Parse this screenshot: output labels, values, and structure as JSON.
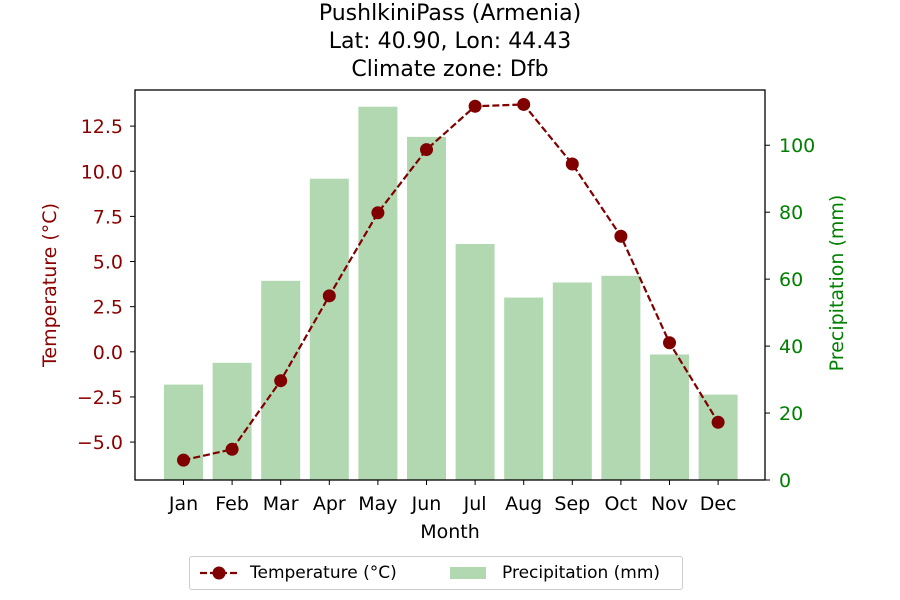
{
  "title_lines": [
    "PushlkiniPass (Armenia)",
    "Lat: 40.90, Lon: 44.43",
    "Climate zone: Dfb"
  ],
  "colors": {
    "temperature": "#800000",
    "precipitation": "#b2d8b2",
    "precip_axis": "#008000",
    "temp_axis": "#8b0000"
  },
  "legend": {
    "temperature": "Temperature (°C)",
    "precipitation": "Precipitation (mm)"
  },
  "chart_data": {
    "type": "bar",
    "title": "PushlkiniPass (Armenia)\nLat: 40.90, Lon: 44.43\nClimate zone: Dfb",
    "xlabel": "Month",
    "categories": [
      "Jan",
      "Feb",
      "Mar",
      "Apr",
      "May",
      "Jun",
      "Jul",
      "Aug",
      "Sep",
      "Oct",
      "Nov",
      "Dec"
    ],
    "series": [
      {
        "name": "Temperature (°C)",
        "type": "line",
        "axis": "left",
        "values": [
          -6.0,
          -5.4,
          -1.6,
          3.1,
          7.7,
          11.2,
          13.6,
          13.7,
          10.4,
          6.4,
          0.5,
          -3.9
        ]
      },
      {
        "name": "Precipitation (mm)",
        "type": "bar",
        "axis": "right",
        "values": [
          28.5,
          35,
          59.5,
          90,
          111.5,
          102.5,
          70.5,
          54.5,
          59,
          61,
          37.5,
          25.5
        ]
      }
    ],
    "y_left": {
      "label": "Temperature (°C)",
      "lim": [
        -7.1,
        14.5
      ],
      "ticks": [
        "−5.0",
        "−2.5",
        "0.0",
        "2.5",
        "5.0",
        "7.5",
        "10.0",
        "12.5"
      ]
    },
    "y_right": {
      "label": "Precipitation (mm)",
      "lim": [
        0,
        116.5
      ],
      "ticks": [
        "0",
        "20",
        "40",
        "60",
        "80",
        "100"
      ]
    },
    "legend_position": "bottom-center",
    "grid": false
  }
}
